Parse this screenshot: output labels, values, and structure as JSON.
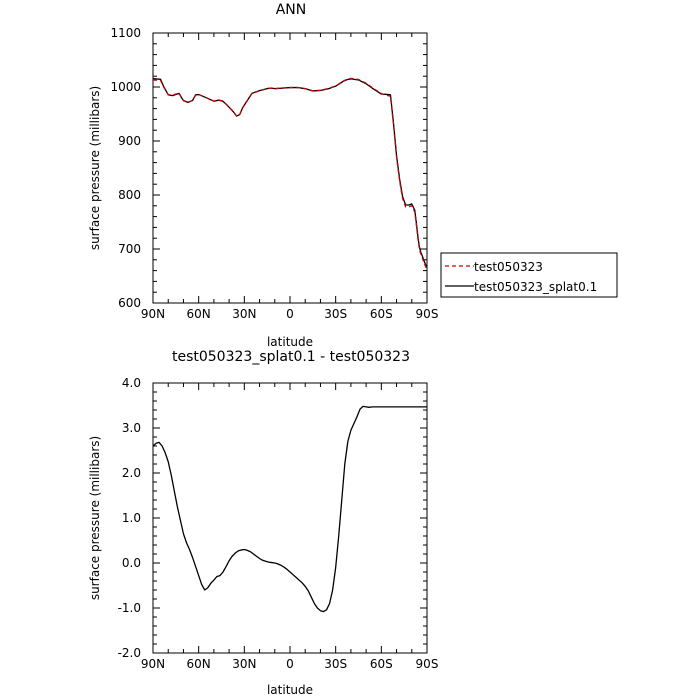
{
  "chart_data": [
    {
      "type": "line",
      "title": "ANN",
      "xlabel": "latitude",
      "ylabel": "surface pressure (millibars)",
      "xlim": [
        90,
        -90
      ],
      "ylim": [
        600,
        1100
      ],
      "xticks": [
        {
          "value": 90,
          "label": "90N"
        },
        {
          "value": 60,
          "label": "60N"
        },
        {
          "value": 30,
          "label": "30N"
        },
        {
          "value": 0,
          "label": "0"
        },
        {
          "value": -30,
          "label": "30S"
        },
        {
          "value": -60,
          "label": "60S"
        },
        {
          "value": -90,
          "label": "90S"
        }
      ],
      "yticks": [
        {
          "value": 600,
          "label": "600"
        },
        {
          "value": 700,
          "label": "700"
        },
        {
          "value": 800,
          "label": "800"
        },
        {
          "value": 900,
          "label": "900"
        },
        {
          "value": 1000,
          "label": "1000"
        },
        {
          "value": 1100,
          "label": "1100"
        }
      ],
      "legend": "right-bottom",
      "series": [
        {
          "name": "test050323",
          "color": "#cc0000",
          "dash": "dashed",
          "x": [
            90,
            85,
            83,
            80,
            77,
            73,
            70,
            67,
            64,
            62,
            60,
            57,
            54,
            50,
            47,
            44,
            40,
            37,
            35,
            33,
            31,
            28,
            25,
            20,
            15,
            12,
            10,
            5,
            0,
            -5,
            -10,
            -15,
            -20,
            -25,
            -30,
            -35,
            -38,
            -40,
            -45,
            -50,
            -55,
            -60,
            -63,
            -66,
            -68,
            -70,
            -72,
            -74,
            -76,
            -78,
            -80,
            -82,
            -83,
            -84,
            -85,
            -86,
            -87,
            -88,
            -89,
            -90
          ],
          "y": [
            1013,
            1012,
            1000,
            986,
            985,
            989,
            975,
            972,
            975,
            985,
            986,
            983,
            979,
            974,
            976,
            974,
            963,
            953,
            946,
            949,
            962,
            975,
            988,
            993,
            997,
            998,
            997,
            998,
            999,
            999,
            997,
            993,
            994,
            997,
            1002,
            1011,
            1015,
            1016,
            1014,
            1007,
            997,
            988,
            985,
            983,
            930,
            870,
            826,
            793,
            778,
            778,
            780,
            768,
            745,
            720,
            700,
            690,
            683,
            675,
            668,
            662
          ]
        },
        {
          "name": "test050323_splat0.1",
          "color": "#000000",
          "dash": "solid",
          "x": [
            90,
            85,
            83,
            80,
            77,
            73,
            70,
            67,
            64,
            62,
            60,
            57,
            54,
            50,
            47,
            44,
            40,
            37,
            35,
            33,
            31,
            28,
            25,
            20,
            15,
            12,
            10,
            5,
            0,
            -5,
            -10,
            -15,
            -20,
            -25,
            -30,
            -35,
            -38,
            -40,
            -45,
            -50,
            -55,
            -60,
            -63,
            -66,
            -68,
            -70,
            -72,
            -74,
            -76,
            -78,
            -80,
            -82,
            -83,
            -84,
            -85,
            -86,
            -87,
            -88,
            -89,
            -90
          ],
          "y": [
            1015.5,
            1014.2,
            1001,
            985.5,
            984,
            988.2,
            974.7,
            971.5,
            975.1,
            985.5,
            986,
            982.5,
            978.8,
            973.7,
            975.6,
            973.5,
            962.6,
            953.3,
            946.1,
            949.3,
            962.3,
            975.2,
            988.3,
            993.2,
            997.1,
            998,
            996.9,
            997.9,
            999,
            999,
            996.9,
            992.7,
            993.6,
            996.5,
            1001.6,
            1010.6,
            1014,
            1015,
            1013,
            1006,
            995.9,
            987,
            986.5,
            985.5,
            933,
            873,
            829.5,
            796.5,
            781.5,
            781.5,
            783.5,
            771.5,
            748.5,
            723.5,
            703.5,
            693.5,
            686.5,
            678.5,
            671.5,
            665.5
          ]
        }
      ]
    },
    {
      "type": "line",
      "title": "test050323_splat0.1 - test050323",
      "xlabel": "latitude",
      "ylabel": "surface pressure (millibars)",
      "xlim": [
        90,
        -90
      ],
      "ylim": [
        -2.0,
        4.0
      ],
      "xticks": [
        {
          "value": 90,
          "label": "90N"
        },
        {
          "value": 60,
          "label": "60N"
        },
        {
          "value": 30,
          "label": "30N"
        },
        {
          "value": 0,
          "label": "0"
        },
        {
          "value": -30,
          "label": "30S"
        },
        {
          "value": -60,
          "label": "60S"
        },
        {
          "value": -90,
          "label": "90S"
        }
      ],
      "yticks": [
        {
          "value": -2.0,
          "label": "-2.0"
        },
        {
          "value": -1.0,
          "label": "-1.0"
        },
        {
          "value": 0.0,
          "label": "0.0"
        },
        {
          "value": 1.0,
          "label": "1.0"
        },
        {
          "value": 2.0,
          "label": "2.0"
        },
        {
          "value": 3.0,
          "label": "3.0"
        },
        {
          "value": 4.0,
          "label": "4.0"
        }
      ],
      "series": [
        {
          "color": "#000000",
          "dash": "solid",
          "x": [
            90,
            88,
            86,
            84,
            82,
            80,
            78,
            76,
            74,
            72,
            70,
            68,
            66,
            64,
            62,
            60,
            58,
            56,
            54,
            52,
            50,
            48,
            46,
            44,
            42,
            40,
            38,
            36,
            34,
            32,
            30,
            28,
            26,
            24,
            22,
            20,
            18,
            16,
            14,
            12,
            10,
            8,
            6,
            4,
            2,
            0,
            -2,
            -4,
            -6,
            -8,
            -10,
            -12,
            -14,
            -16,
            -18,
            -20,
            -22,
            -24,
            -26,
            -28,
            -30,
            -32,
            -34,
            -36,
            -38,
            -40,
            -42,
            -44,
            -46,
            -48,
            -50,
            -52,
            -54,
            -56,
            -58,
            -60,
            -62,
            -64,
            -66,
            -68,
            -70,
            -72,
            -74,
            -76,
            -78,
            -80,
            -82,
            -84,
            -86,
            -88,
            -90
          ],
          "y": [
            2.6,
            2.66,
            2.68,
            2.6,
            2.45,
            2.25,
            1.95,
            1.6,
            1.25,
            0.95,
            0.65,
            0.45,
            0.3,
            0.12,
            -0.08,
            -0.28,
            -0.48,
            -0.6,
            -0.55,
            -0.45,
            -0.38,
            -0.3,
            -0.28,
            -0.2,
            -0.08,
            0.05,
            0.15,
            0.22,
            0.27,
            0.29,
            0.3,
            0.28,
            0.25,
            0.2,
            0.15,
            0.1,
            0.06,
            0.04,
            0.02,
            0.01,
            0.0,
            -0.02,
            -0.05,
            -0.09,
            -0.14,
            -0.2,
            -0.26,
            -0.32,
            -0.38,
            -0.44,
            -0.52,
            -0.62,
            -0.76,
            -0.9,
            -1.0,
            -1.06,
            -1.08,
            -1.04,
            -0.9,
            -0.6,
            -0.1,
            0.6,
            1.4,
            2.2,
            2.7,
            2.95,
            3.1,
            3.25,
            3.42,
            3.48,
            3.47,
            3.46,
            3.47,
            3.47,
            3.47,
            3.47,
            3.47,
            3.47,
            3.47,
            3.47,
            3.47,
            3.47,
            3.47,
            3.47,
            3.47,
            3.47,
            3.47,
            3.47,
            3.47,
            3.47,
            3.47
          ]
        }
      ]
    }
  ]
}
